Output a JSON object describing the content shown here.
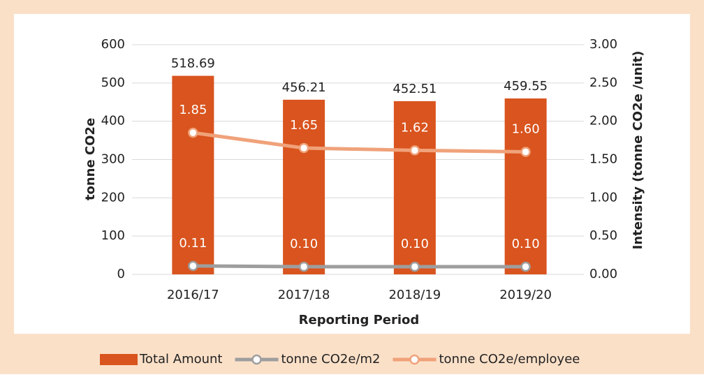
{
  "chart_data": {
    "type": "bar",
    "x_label": "Reporting Period",
    "y_label": "tonne CO2e",
    "y2_label": "Intensity (tonne CO2e /unit)",
    "categories": [
      "2016/17",
      "2017/18",
      "2018/19",
      "2019/20"
    ],
    "series": [
      {
        "name": "Total Amount",
        "type": "bar",
        "color": "#d9541e",
        "values": [
          518.69,
          456.21,
          452.51,
          459.55
        ]
      },
      {
        "name": "tonne CO2e/m2",
        "type": "line",
        "axis": "y2",
        "color": "#9e9e9e",
        "values": [
          0.11,
          0.1,
          0.1,
          0.1
        ],
        "value_labels": [
          "0.11",
          "0.10",
          "0.10",
          "0.10"
        ]
      },
      {
        "name": "tonne CO2e/employee",
        "type": "line",
        "axis": "y2",
        "color": "#f0a27a",
        "values": [
          1.85,
          1.65,
          1.62,
          1.6
        ],
        "value_labels": [
          "1.85",
          "1.65",
          "1.62",
          "1.60"
        ]
      }
    ],
    "ylim": [
      0,
      600
    ],
    "yticks": [
      0,
      100,
      200,
      300,
      400,
      500,
      600
    ],
    "y2lim": [
      0,
      3
    ],
    "y2ticks": [
      {
        "value": 0,
        "label": "0.00"
      },
      {
        "value": 0.5,
        "label": "0.50"
      },
      {
        "value": 1,
        "label": "1.00"
      },
      {
        "value": 1.5,
        "label": "1.50"
      },
      {
        "value": 2,
        "label": "2.00"
      },
      {
        "value": 2.5,
        "label": "2.50"
      },
      {
        "value": 3,
        "label": "3.00"
      }
    ],
    "grid": true,
    "legend": "bottom"
  }
}
